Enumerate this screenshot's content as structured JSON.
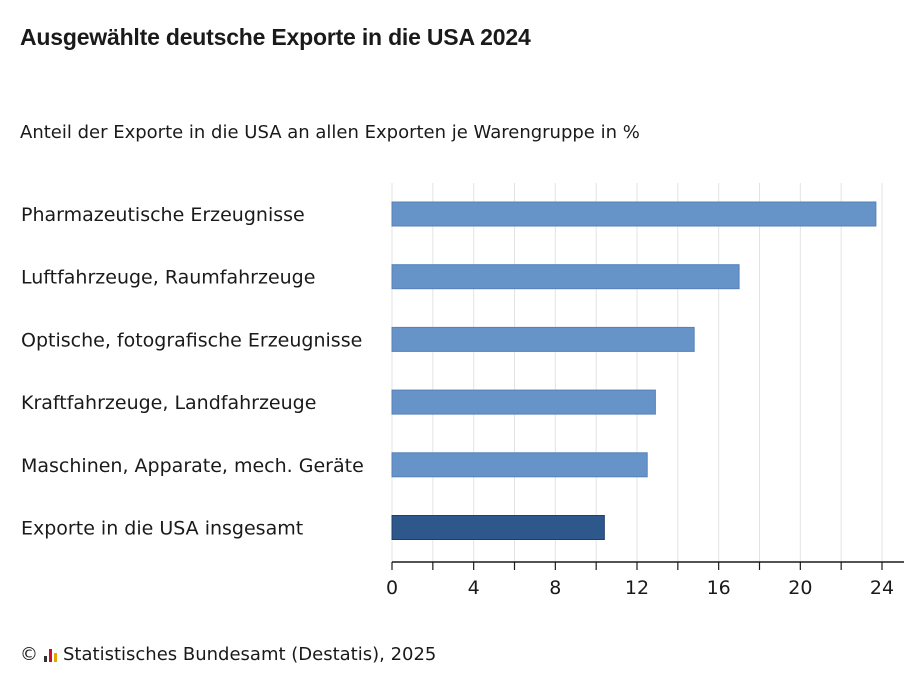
{
  "header": {
    "title": "Ausgewählte deutsche Exporte in die USA 2024",
    "subtitle": "Anteil der Exporte in die USA an allen Exporten je Warengruppe in %"
  },
  "footer": {
    "copyright_symbol": "©",
    "source": "Statistisches Bundesamt (Destatis), 2025"
  },
  "colors": {
    "bar": "#6694c8",
    "bar_highlight": "#2e578c",
    "grid": "#e3e3e3",
    "axis": "#1a1a1a"
  },
  "chart_data": {
    "type": "bar",
    "orientation": "horizontal",
    "title": "Ausgewählte deutsche Exporte in die USA 2024",
    "subtitle": "Anteil der Exporte in die USA an allen Exporten je Warengruppe in %",
    "categories": [
      "Pharmazeutische Erzeugnisse",
      "Luftfahrzeuge, Raumfahrzeuge",
      "Optische, fotografische Erzeugnisse",
      "Kraftfahrzeuge, Landfahrzeuge",
      "Maschinen, Apparate, mech. Geräte",
      "Exporte in die USA insgesamt"
    ],
    "values": [
      23.7,
      17.0,
      14.8,
      12.9,
      12.5,
      10.4
    ],
    "highlight_index": 5,
    "xlim": [
      0,
      24
    ],
    "xticks": [
      0,
      4,
      8,
      12,
      16,
      20,
      24
    ],
    "minor_tick_step": 2,
    "grid": true,
    "xlabel": "",
    "ylabel": ""
  }
}
